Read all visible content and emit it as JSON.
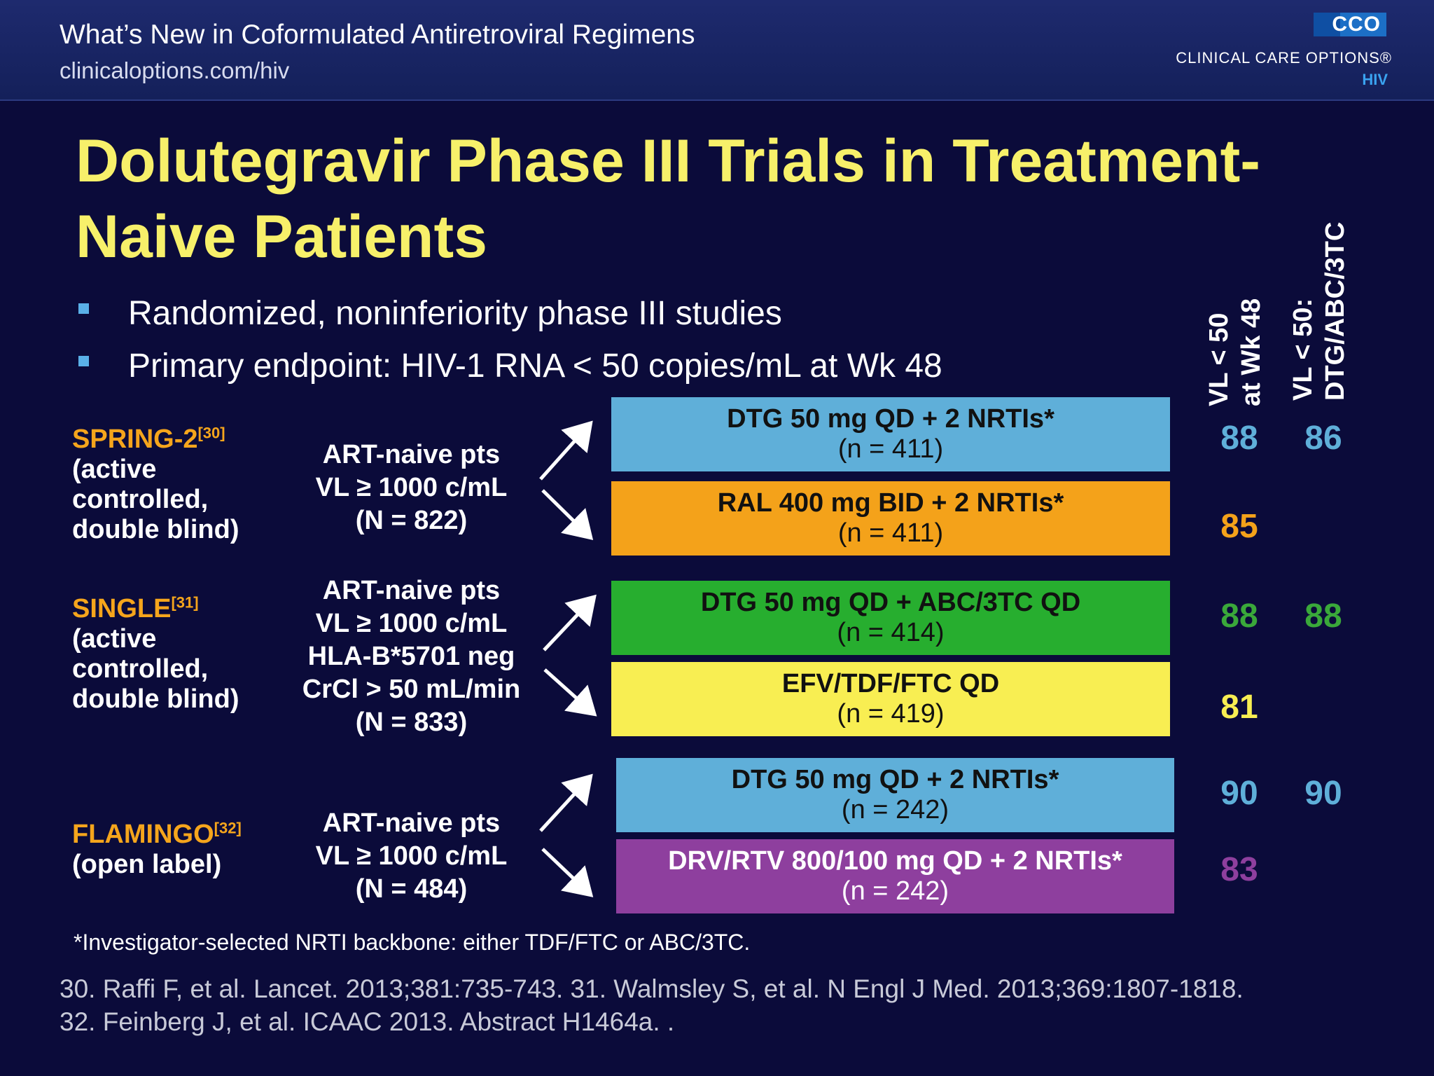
{
  "header": {
    "title": "What’s New in Coformulated Antiretroviral Regimens",
    "url": "clinicaloptions.com/hiv",
    "logo_mark": "CCO",
    "logo_name": "CLINICAL CARE OPTIONS®",
    "logo_sub": "HIV"
  },
  "title": "Dolutegravir Phase III Trials in Treatment-Naive Patients",
  "bullets": [
    "Randomized, noninferiority phase III studies",
    "Primary endpoint: HIV-1 RNA < 50 copies/mL at Wk 48"
  ],
  "columns": {
    "col1_line1": "VL < 50",
    "col1_line2": "at Wk 48",
    "col2_line1": "VL < 50:",
    "col2_line2": "DTG/ABC/3TC"
  },
  "trials": [
    {
      "name": "SPRING-2",
      "ref": "[30]",
      "desc": [
        "(active",
        "controlled,",
        "double blind)"
      ],
      "population": [
        "ART-naive pts",
        "VL ≥ 1000 c/mL",
        "(N = 822)"
      ],
      "arms": [
        {
          "label": "DTG 50 mg QD + 2 NRTIs*",
          "n": "(n = 411)",
          "color": "#5fafd9",
          "vl48": "88",
          "dtg_abc_3tc": "86"
        },
        {
          "label": "RAL 400 mg BID + 2 NRTIs*",
          "n": "(n = 411)",
          "color": "#f4a21a",
          "vl48": "85",
          "dtg_abc_3tc": ""
        }
      ]
    },
    {
      "name": "SINGLE",
      "ref": "[31]",
      "desc": [
        "(active",
        "controlled,",
        "double blind)"
      ],
      "population": [
        "ART-naive pts",
        "VL ≥ 1000 c/mL",
        "HLA-B*5701 neg",
        "CrCl > 50 mL/min",
        "(N = 833)"
      ],
      "arms": [
        {
          "label": "DTG 50 mg QD + ABC/3TC QD",
          "n": "(n = 414)",
          "color": "#27ae2f",
          "vl48": "88",
          "dtg_abc_3tc": "88"
        },
        {
          "label": "EFV/TDF/FTC QD",
          "n": "(n = 419)",
          "color": "#f8ee52",
          "vl48": "81",
          "dtg_abc_3tc": ""
        }
      ]
    },
    {
      "name": "FLAMINGO",
      "ref": "[32]",
      "desc": [
        "(open label)"
      ],
      "population": [
        "ART-naive pts",
        "VL ≥ 1000 c/mL",
        "(N = 484)"
      ],
      "arms": [
        {
          "label": "DTG 50 mg QD + 2 NRTIs*",
          "n": "(n = 242)",
          "color": "#5fafd9",
          "vl48": "90",
          "dtg_abc_3tc": "90"
        },
        {
          "label": "DRV/RTV 800/100 mg QD + 2 NRTIs*",
          "n": "(n = 242)",
          "color": "#8e3f9e",
          "vl48": "83",
          "dtg_abc_3tc": ""
        }
      ]
    }
  ],
  "value_colors": {
    "blue": "#5fafd9",
    "orange": "#f4a21a",
    "green": "#3aa83a",
    "yellow": "#f8ee52",
    "purple": "#8e3f9e"
  },
  "footnote": "*Investigator-selected NRTI backbone: either TDF/FTC or ABC/3TC.",
  "references": [
    "30. Raffi F, et al. Lancet. 2013;381:735-743. 31. Walmsley S, et al. N Engl J Med. 2013;369:1807-1818.",
    "32. Feinberg J, et al. ICAAC 2013. Abstract H1464a. ."
  ]
}
